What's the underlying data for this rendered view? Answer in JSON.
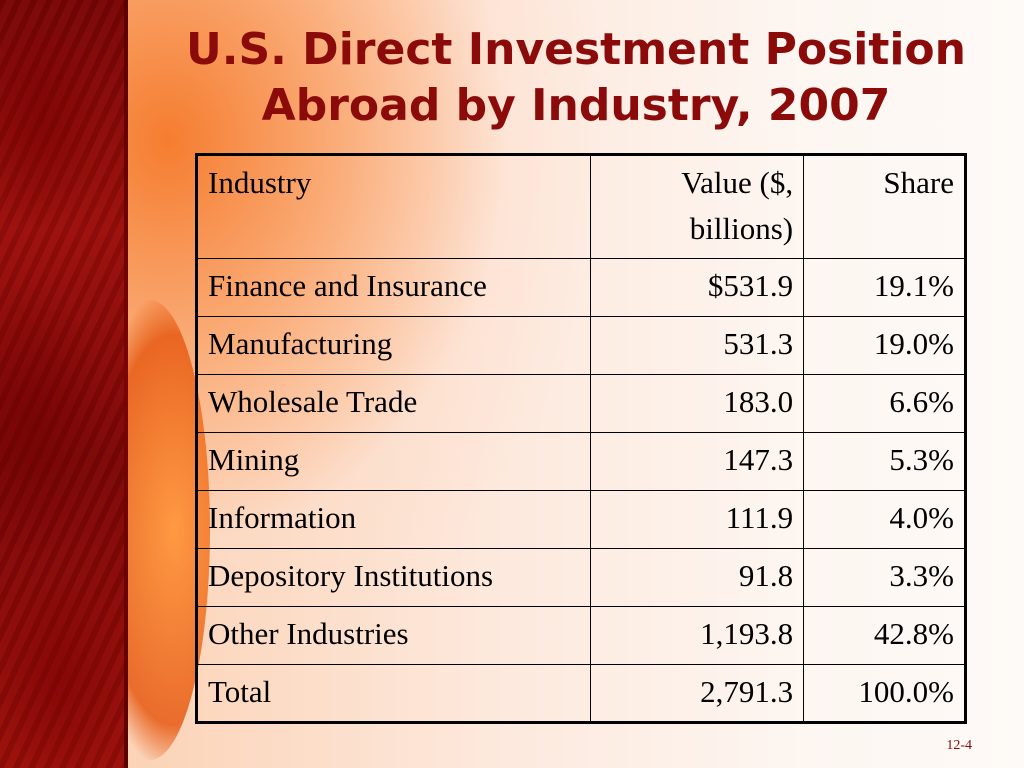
{
  "title": {
    "line1": "U.S. Direct Investment Position",
    "line2": "Abroad by Industry, 2007"
  },
  "table": {
    "headers": [
      "Industry",
      "Value ($, billions)",
      "Share"
    ],
    "rows": [
      {
        "industry": "Finance and Insurance",
        "value": "$531.9",
        "share": "19.1%"
      },
      {
        "industry": "Manufacturing",
        "value": "531.3",
        "share": "19.0%"
      },
      {
        "industry": "Wholesale Trade",
        "value": "183.0",
        "share": "6.6%"
      },
      {
        "industry": "Mining",
        "value": "147.3",
        "share": "5.3%"
      },
      {
        "industry": "Information",
        "value": "111.9",
        "share": "4.0%"
      },
      {
        "industry": "Depository Institutions",
        "value": "91.8",
        "share": "3.3%"
      },
      {
        "industry": "Other Industries",
        "value": "1,193.8",
        "share": "42.8%"
      },
      {
        "industry": "Total",
        "value": "2,791.3",
        "share": "100.0%"
      }
    ]
  },
  "footer": {
    "slide_number": "12-4"
  },
  "colors": {
    "title": "#8b0a0a",
    "left_band": "#8b0a0a",
    "glow": "#f57828"
  }
}
